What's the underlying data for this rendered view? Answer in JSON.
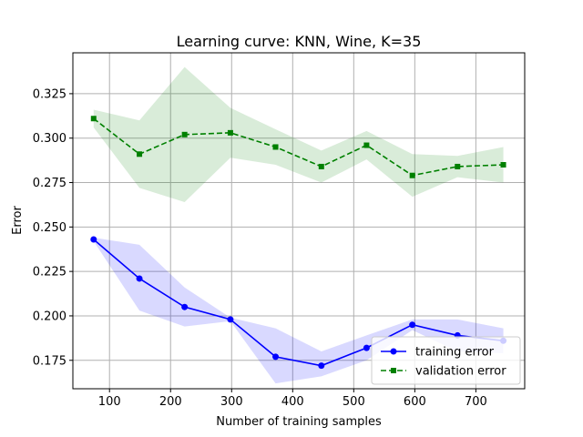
{
  "chart_data": {
    "type": "line",
    "title": "Learning curve: KNN, Wine, K=35",
    "xlabel": "Number of training samples",
    "ylabel": "Error",
    "xlim": [
      40,
      780
    ],
    "ylim": [
      0.159,
      0.348
    ],
    "xticks": [
      100,
      200,
      300,
      400,
      500,
      600,
      700
    ],
    "yticks": [
      0.175,
      0.2,
      0.225,
      0.25,
      0.275,
      0.3,
      0.325
    ],
    "ytick_labels": [
      "0.175",
      "0.200",
      "0.225",
      "0.250",
      "0.275",
      "0.300",
      "0.325"
    ],
    "grid": true,
    "legend_position": "lower-right",
    "x": [
      74,
      149,
      223,
      298,
      372,
      447,
      521,
      596,
      670,
      745
    ],
    "series": [
      {
        "name": "training error",
        "color": "#0000ff",
        "band_color": "#0000ff",
        "linestyle": "solid",
        "marker": "circle",
        "values": [
          0.243,
          0.221,
          0.205,
          0.198,
          0.177,
          0.172,
          0.182,
          0.195,
          0.189,
          0.186
        ],
        "upper": [
          0.244,
          0.24,
          0.216,
          0.199,
          0.193,
          0.18,
          0.189,
          0.198,
          0.198,
          0.193
        ],
        "lower": [
          0.242,
          0.203,
          0.194,
          0.197,
          0.162,
          0.166,
          0.175,
          0.192,
          0.18,
          0.179
        ]
      },
      {
        "name": "validation error",
        "color": "#008000",
        "band_color": "#008000",
        "linestyle": "dashed",
        "marker": "square",
        "values": [
          0.311,
          0.291,
          0.302,
          0.303,
          0.295,
          0.284,
          0.296,
          0.279,
          0.284,
          0.285
        ],
        "upper": [
          0.316,
          0.31,
          0.34,
          0.317,
          0.305,
          0.293,
          0.304,
          0.291,
          0.29,
          0.295
        ],
        "lower": [
          0.306,
          0.272,
          0.264,
          0.289,
          0.285,
          0.275,
          0.288,
          0.267,
          0.278,
          0.275
        ]
      }
    ]
  }
}
